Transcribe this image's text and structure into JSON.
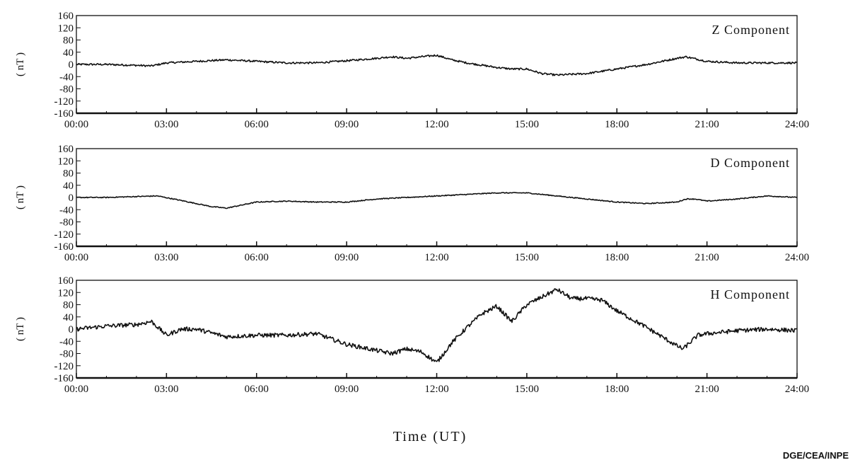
{
  "chart_data": [
    {
      "type": "line",
      "title": "Z Component",
      "ylabel": "( nT )",
      "ylim": [
        -160,
        160
      ],
      "yticks": [
        "160",
        "120",
        "80",
        "40",
        "0",
        "-40",
        "-80",
        "-120",
        "-160"
      ],
      "xlim": [
        0,
        24
      ],
      "xticks": [
        "00:00",
        "03:00",
        "06:00",
        "09:00",
        "12:00",
        "15:00",
        "18:00",
        "21:00",
        "24:00"
      ],
      "x": [
        0,
        1,
        2,
        2.5,
        3,
        4,
        5,
        6,
        7,
        8,
        9,
        10,
        10.5,
        11,
        12,
        12.5,
        13,
        14,
        14.5,
        15,
        15.5,
        16,
        17,
        18,
        19,
        20,
        20.3,
        21,
        22,
        23,
        24
      ],
      "y": [
        0,
        0,
        -3,
        -5,
        5,
        10,
        15,
        10,
        5,
        5,
        12,
        20,
        25,
        20,
        30,
        15,
        5,
        -10,
        -15,
        -15,
        -30,
        -35,
        -30,
        -15,
        0,
        20,
        25,
        10,
        5,
        5,
        5
      ],
      "noise": 3
    },
    {
      "type": "line",
      "title": "D Component",
      "ylabel": "( nT )",
      "ylim": [
        -160,
        160
      ],
      "yticks": [
        "160",
        "120",
        "80",
        "40",
        "0",
        "-40",
        "-80",
        "-120",
        "-160"
      ],
      "xlim": [
        0,
        24
      ],
      "xticks": [
        "00:00",
        "03:00",
        "06:00",
        "09:00",
        "12:00",
        "15:00",
        "18:00",
        "21:00",
        "24:00"
      ],
      "x": [
        0,
        1,
        2,
        2.7,
        3.5,
        4.5,
        5,
        5.5,
        6,
        7,
        8,
        9,
        10,
        11,
        12,
        13,
        14,
        15,
        16,
        17,
        18,
        19,
        20,
        20.3,
        20.6,
        21,
        22,
        23,
        24
      ],
      "y": [
        0,
        0,
        3,
        5,
        -10,
        -30,
        -35,
        -25,
        -15,
        -12,
        -15,
        -15,
        -5,
        0,
        5,
        10,
        15,
        15,
        5,
        -5,
        -15,
        -20,
        -15,
        -5,
        -5,
        -12,
        -5,
        5,
        0
      ],
      "noise": 1.5
    },
    {
      "type": "line",
      "title": "H Component",
      "ylabel": "( nT )",
      "ylim": [
        -160,
        160
      ],
      "yticks": [
        "160",
        "120",
        "80",
        "40",
        "0",
        "-40",
        "-80",
        "-120",
        "-160"
      ],
      "xlim": [
        0,
        24
      ],
      "xticks": [
        "00:00",
        "03:00",
        "06:00",
        "09:00",
        "12:00",
        "15:00",
        "18:00",
        "21:00",
        "24:00"
      ],
      "x": [
        0,
        1,
        2,
        2.5,
        3,
        3.5,
        4,
        5,
        6,
        7,
        8,
        9,
        10,
        10.5,
        11,
        11.5,
        12,
        12.5,
        13,
        13.5,
        14,
        14.5,
        15,
        15.5,
        16,
        16.5,
        17,
        17.5,
        18,
        19,
        20,
        20.2,
        20.7,
        21,
        22,
        23,
        24
      ],
      "y": [
        0,
        10,
        15,
        25,
        -20,
        0,
        0,
        -25,
        -20,
        -20,
        -15,
        -50,
        -70,
        -80,
        -65,
        -75,
        -110,
        -45,
        5,
        50,
        75,
        25,
        80,
        105,
        130,
        100,
        100,
        95,
        60,
        5,
        -55,
        -65,
        -20,
        -15,
        -5,
        0,
        -5
      ],
      "noise": 7
    }
  ],
  "xlabel": "Time (UT)",
  "credit": "DGE/CEA/INPE",
  "colors": {
    "line": "#111111",
    "frame": "#111111",
    "background": "#ffffff"
  }
}
